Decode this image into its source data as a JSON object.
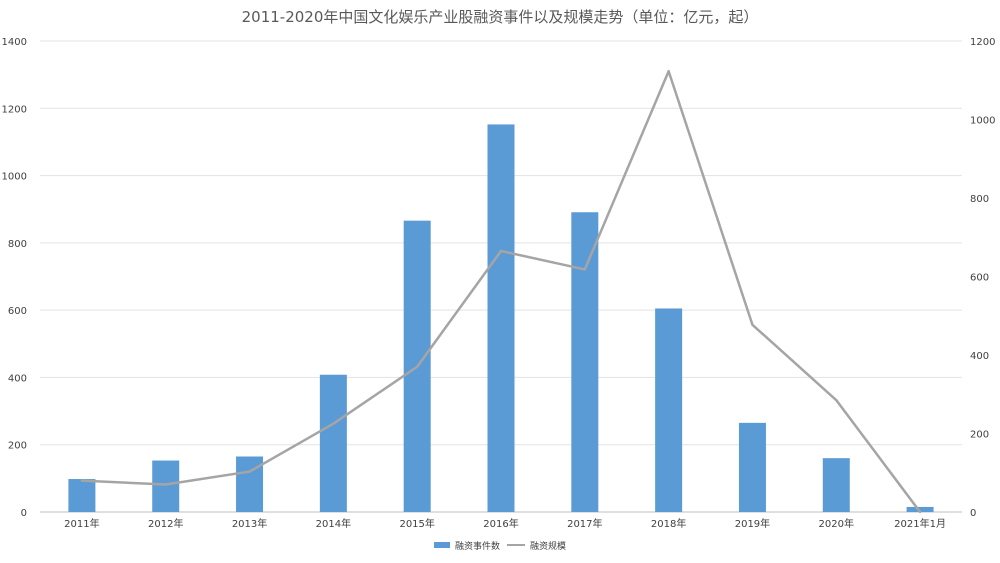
{
  "chart_data": {
    "type": "bar",
    "title": "2011-2020年中国文化娱乐产业股融资事件以及规模走势（单位：亿元，起）",
    "categories": [
      "2011年",
      "2012年",
      "2013年",
      "2014年",
      "2015年",
      "2016年",
      "2017年",
      "2018年",
      "2019年",
      "2020年",
      "2021年1月"
    ],
    "series": [
      {
        "name": "融资事件数",
        "type": "bar",
        "axis": "left",
        "color": "#5B9BD5",
        "values": [
          98,
          153,
          165,
          408,
          866,
          1152,
          891,
          605,
          265,
          160,
          15
        ]
      },
      {
        "name": "融资规模",
        "type": "line",
        "axis": "right",
        "color": "#A5A5A5",
        "values": [
          80,
          70,
          103,
          225,
          370,
          665,
          618,
          1123,
          477,
          285,
          0
        ]
      }
    ],
    "left_axis": {
      "ylim": [
        0,
        1400
      ],
      "ticks": [
        "0",
        "200",
        "400",
        "600",
        "800",
        "1000",
        "1200",
        "1400"
      ]
    },
    "right_axis": {
      "ylim": [
        0,
        1200
      ],
      "ticks": [
        "0",
        "200",
        "400",
        "600",
        "800",
        "1000",
        "1200"
      ]
    },
    "grid": true,
    "legend_position": "bottom"
  }
}
